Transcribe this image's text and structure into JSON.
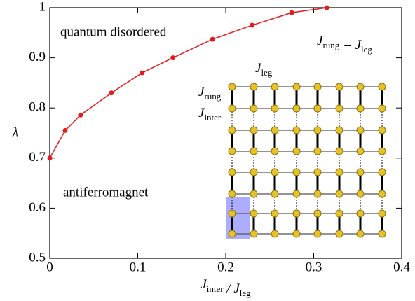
{
  "chart_data": {
    "type": "line",
    "x_label": [
      {
        "text": "J",
        "sub": "inter"
      },
      {
        "text": " / J",
        "sub": "leg"
      }
    ],
    "y_label": "λ",
    "annotations": {
      "upper": "quantum disordered",
      "lower": "antiferromagnet",
      "condition": [
        {
          "text": "J",
          "sub": "rung"
        },
        {
          "text": " = J",
          "sub": "leg"
        }
      ],
      "leg": [
        {
          "text": "J",
          "sub": "leg"
        }
      ],
      "rung": [
        {
          "text": "J",
          "sub": "rung"
        }
      ],
      "inter": [
        {
          "text": "J",
          "sub": "inter"
        }
      ]
    },
    "x": [
      0,
      0.0175,
      0.035,
      0.07,
      0.105,
      0.14,
      0.185,
      0.23,
      0.275,
      0.315
    ],
    "series": [
      {
        "color": "#e41a1c",
        "values": [
          0.7,
          0.755,
          0.786,
          0.83,
          0.87,
          0.9,
          0.937,
          0.965,
          0.99,
          1.0
        ]
      }
    ],
    "xlim": [
      0,
      0.4
    ],
    "xticks": [
      0,
      0.1,
      0.2,
      0.3,
      0.4
    ],
    "ylim": [
      0.5,
      1
    ],
    "yticks": [
      0.5,
      0.6,
      0.7,
      0.8,
      0.9,
      1
    ],
    "grid": false
  }
}
